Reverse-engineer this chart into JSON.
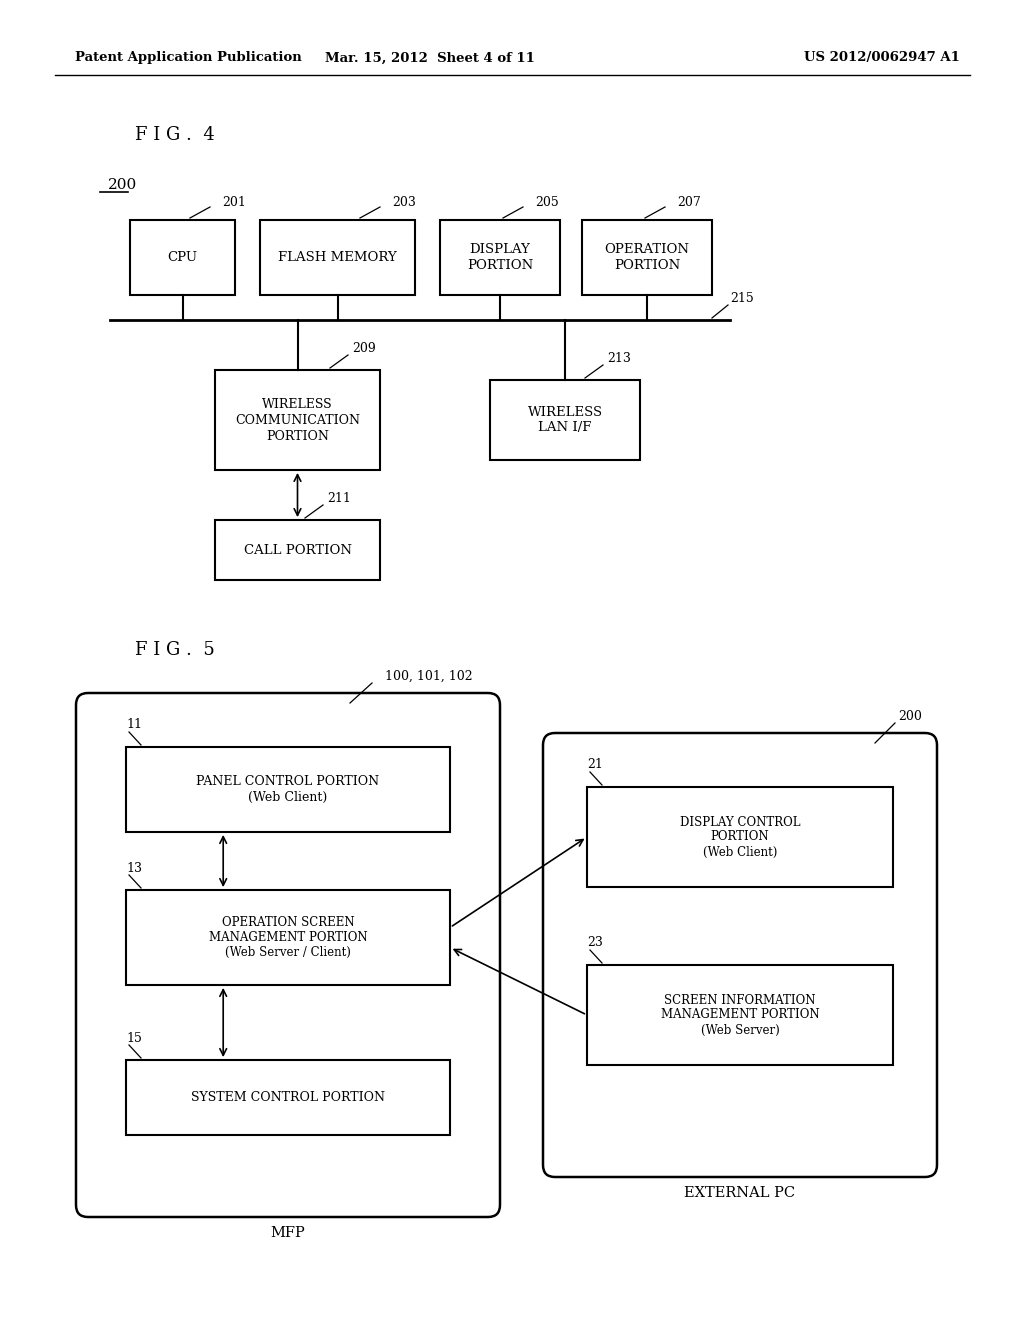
{
  "bg_color": "#ffffff",
  "header_left": "Patent Application Publication",
  "header_mid": "Mar. 15, 2012  Sheet 4 of 11",
  "header_right": "US 2012/0062947 A1"
}
